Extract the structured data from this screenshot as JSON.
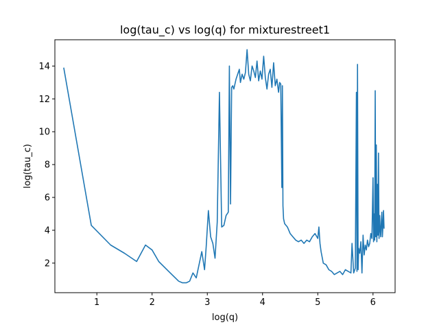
{
  "chart_data": {
    "type": "line",
    "title": "log(tau_c) vs log(q) for mixturestreet1",
    "xlabel": "log(q)",
    "ylabel": "log(tau_c)",
    "xlim": [
      0.24,
      6.4
    ],
    "ylim": [
      0.2,
      15.6
    ],
    "xticks": [
      1,
      2,
      3,
      4,
      5,
      6
    ],
    "yticks": [
      2,
      4,
      6,
      8,
      10,
      12,
      14
    ],
    "grid": false,
    "line_color": "#1f77b4",
    "series": [
      {
        "x": [
          0.4,
          0.9,
          1.25,
          1.5,
          1.72,
          1.88,
          2.0,
          2.12,
          2.3,
          2.48,
          2.55,
          2.62,
          2.68,
          2.74,
          2.8,
          2.9,
          2.95,
          2.98,
          3.02,
          3.06,
          3.1,
          3.14,
          3.18,
          3.22,
          3.26,
          3.3,
          3.34,
          3.38,
          3.4,
          3.42,
          3.44,
          3.46,
          3.48,
          3.52,
          3.55,
          3.58,
          3.6,
          3.63,
          3.66,
          3.69,
          3.72,
          3.75,
          3.78,
          3.81,
          3.84,
          3.87,
          3.9,
          3.93,
          3.96,
          3.99,
          4.02,
          4.05,
          4.08,
          4.11,
          4.14,
          4.17,
          4.2,
          4.23,
          4.26,
          4.29,
          4.31,
          4.33,
          4.35,
          4.36,
          4.37,
          4.38,
          4.4,
          4.45,
          4.5,
          4.55,
          4.6,
          4.65,
          4.7,
          4.75,
          4.8,
          4.85,
          4.9,
          4.95,
          5.0,
          5.02,
          5.04,
          5.06,
          5.1,
          5.15,
          5.2,
          5.25,
          5.3,
          5.35,
          5.4,
          5.45,
          5.5,
          5.55,
          5.6,
          5.62,
          5.65,
          5.68,
          5.7,
          5.71,
          5.72,
          5.73,
          5.74,
          5.76,
          5.78,
          5.8,
          5.82,
          5.84,
          5.86,
          5.88,
          5.9,
          5.92,
          5.94,
          5.96,
          5.98,
          6.0,
          6.01,
          6.02,
          6.03,
          6.04,
          6.05,
          6.06,
          6.07,
          6.08,
          6.09,
          6.1,
          6.11,
          6.12,
          6.13,
          6.14,
          6.15,
          6.16,
          6.17,
          6.18,
          6.19,
          6.2
        ],
        "y": [
          13.9,
          4.3,
          3.1,
          2.6,
          2.1,
          3.1,
          2.8,
          2.1,
          1.5,
          0.9,
          0.8,
          0.8,
          0.9,
          1.4,
          1.1,
          2.7,
          1.6,
          3.0,
          5.2,
          3.6,
          3.2,
          2.3,
          4.5,
          12.4,
          4.2,
          4.3,
          4.9,
          5.1,
          14.0,
          5.6,
          12.7,
          12.8,
          12.6,
          13.2,
          13.5,
          13.8,
          13.0,
          13.5,
          13.2,
          13.6,
          15.0,
          13.5,
          13.1,
          14.0,
          13.7,
          13.3,
          14.3,
          13.1,
          13.7,
          13.2,
          14.6,
          13.3,
          12.6,
          13.5,
          13.8,
          12.7,
          14.2,
          12.8,
          13.2,
          12.4,
          13.0,
          12.9,
          6.6,
          12.8,
          5.5,
          4.7,
          4.4,
          4.2,
          3.8,
          3.6,
          3.4,
          3.3,
          3.4,
          3.2,
          3.4,
          3.3,
          3.6,
          3.8,
          3.5,
          4.2,
          3.2,
          2.7,
          2.0,
          1.9,
          1.6,
          1.5,
          1.3,
          1.4,
          1.5,
          1.3,
          1.6,
          1.5,
          1.4,
          3.2,
          1.4,
          1.7,
          12.4,
          1.5,
          14.1,
          1.6,
          2.9,
          2.6,
          3.3,
          1.4,
          3.7,
          2.5,
          3.1,
          2.8,
          3.4,
          3.0,
          3.2,
          3.8,
          3.5,
          7.2,
          3.3,
          5.0,
          3.4,
          12.5,
          3.6,
          9.2,
          3.3,
          6.8,
          3.7,
          8.7,
          3.5,
          4.9,
          4.0,
          3.6,
          4.5,
          5.1,
          3.6,
          4.3,
          5.2,
          4.1
        ]
      }
    ]
  }
}
